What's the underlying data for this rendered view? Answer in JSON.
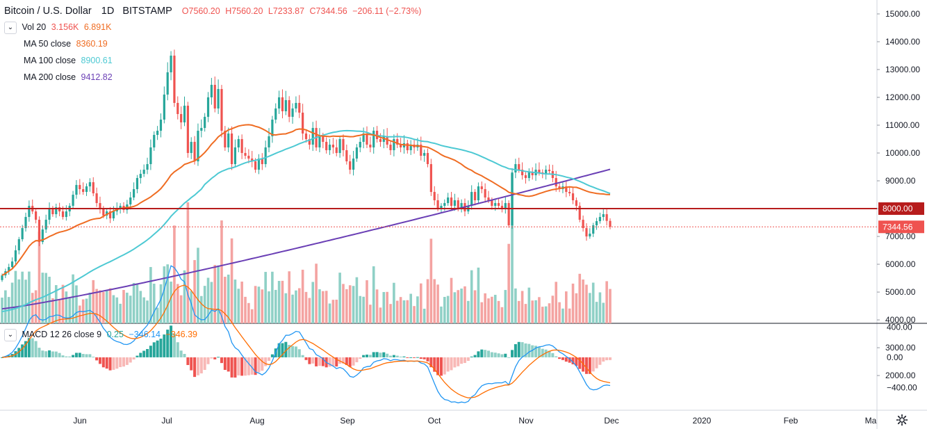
{
  "header": {
    "symbol": "Bitcoin / U.S. Dollar",
    "interval": "1D",
    "exchange": "BITSTAMP",
    "ohlc": {
      "o": "O7560.20",
      "h": "H7560.20",
      "l": "L7233.87",
      "c": "C7344.56",
      "chg": "−206.11 (−2.73%)"
    }
  },
  "legend": {
    "vol": {
      "label": "Vol 20",
      "v1": "3.156K",
      "v2": "6.891K"
    },
    "ma50": {
      "label": "MA 50 close",
      "value": "8360.19"
    },
    "ma100": {
      "label": "MA 100 close",
      "value": "8900.61"
    },
    "ma200": {
      "label": "MA 200 close",
      "value": "9412.82"
    },
    "macd": {
      "label": "MACD 12 26 close 9",
      "hist": "0.25",
      "macd": "−346.14",
      "signal": "−346.39"
    }
  },
  "colors": {
    "up": "#26a69a",
    "down": "#ef5350",
    "vol_up": "#8fd0c6",
    "vol_down": "#f4a3a1",
    "ma50": "#ef6c22",
    "ma100": "#4dc9d3",
    "ma200": "#6a3fb5",
    "hline": "#b71c1c",
    "macd_line": "#2196f3",
    "signal_line": "#ff6d00"
  },
  "price_axis": {
    "labels": [
      "15000.00",
      "14000.00",
      "13000.00",
      "12000.00",
      "11000.00",
      "10000.00",
      "9000.00",
      "8000.00",
      "7000.00",
      "6000.00",
      "5000.00",
      "4000.00",
      "3000.00",
      "2000.00"
    ],
    "hline_label": "8000.00",
    "last_label": "7344.56"
  },
  "macd_axis": {
    "labels": [
      "400.00",
      "0.00",
      "−400.00"
    ]
  },
  "time_axis": {
    "labels": [
      "Jun",
      "Jul",
      "Aug",
      "Sep",
      "Oct",
      "Nov",
      "Dec",
      "2020",
      "Feb",
      "Ma"
    ]
  },
  "icons": {
    "settings": "gear-icon",
    "collapse": "chevron-down-icon"
  },
  "chart_data": {
    "type": "candlestick",
    "ylim": [
      4200,
      15300
    ],
    "macd_ylim": [
      -700,
      450
    ],
    "hline": 8000,
    "last_price": 7344.56,
    "x_labels": [
      "Jun",
      "Jul",
      "Aug",
      "Sep",
      "Oct",
      "Nov",
      "Dec",
      "2020",
      "Feb",
      "Ma"
    ],
    "closes": [
      5600,
      5750,
      5900,
      6100,
      6500,
      6900,
      7300,
      7700,
      8100,
      7900,
      7600,
      6800,
      7250,
      7600,
      8000,
      7800,
      8050,
      7900,
      7700,
      7900,
      8100,
      8500,
      8850,
      8700,
      8600,
      8800,
      8950,
      8550,
      8200,
      8000,
      7750,
      7900,
      7650,
      7900,
      8000,
      8100,
      7950,
      8150,
      8400,
      8700,
      9100,
      9250,
      9400,
      9600,
      10200,
      10650,
      10800,
      11200,
      12100,
      12900,
      13500,
      11800,
      11400,
      11100,
      11700,
      10000,
      10400,
      9700,
      10800,
      10900,
      11300,
      12000,
      12450,
      11600,
      12300,
      10800,
      10200,
      10700,
      9600,
      10200,
      10500,
      10000,
      9900,
      9800,
      9700,
      9400,
      9800,
      9600,
      10200,
      10600,
      11200,
      11600,
      12000,
      11500,
      11900,
      11300,
      11600,
      11800,
      11450,
      10700,
      10500,
      10300,
      10900,
      10200,
      10600,
      10400,
      10100,
      10300,
      10200,
      10000,
      10500,
      10100,
      9700,
      9400,
      9800,
      10200,
      10400,
      10700,
      10300,
      10200,
      10800,
      10500,
      10400,
      10600,
      10300,
      10100,
      10500,
      10300,
      10200,
      10350,
      10100,
      10300,
      10200,
      10300,
      9900,
      10000,
      9600,
      8600,
      8300,
      8000,
      8100,
      8200,
      8400,
      8100,
      8300,
      8000,
      8200,
      7900,
      8100,
      8600,
      8300,
      8800,
      8700,
      8400,
      8300,
      8100,
      8200,
      8100,
      8000,
      8200,
      7400,
      9300,
      9600,
      9400,
      9200,
      9100,
      9300,
      9200,
      9400,
      9300,
      9250,
      9400,
      9350,
      9100,
      8800,
      8700,
      8800,
      8600,
      8550,
      8300,
      8100,
      7600,
      7300,
      7000,
      7100,
      7400,
      7550,
      7700,
      7800,
      7560,
      7344.56
    ],
    "series_ma": [
      {
        "name": "MA 50 close",
        "end": 8360.19
      },
      {
        "name": "MA 100 close",
        "end": 8900.61
      },
      {
        "name": "MA 200 close",
        "end": 9412.82
      }
    ]
  }
}
